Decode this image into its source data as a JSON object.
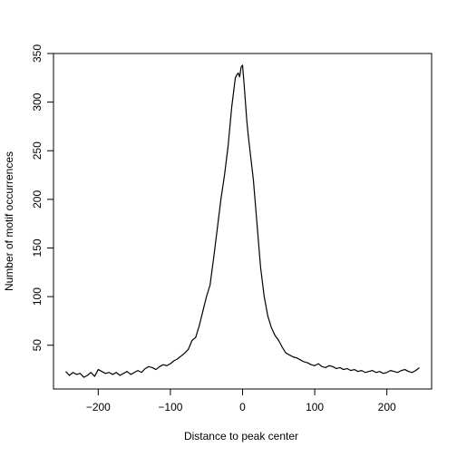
{
  "chart_data": {
    "type": "line",
    "title": "",
    "xlabel": "Distance to peak center",
    "ylabel": "Number of motif occurrences",
    "xlim": [
      -262,
      262
    ],
    "ylim": [
      5,
      350
    ],
    "xticks": [
      -200,
      -100,
      0,
      100,
      200
    ],
    "yticks": [
      50,
      100,
      150,
      200,
      250,
      300,
      350
    ],
    "grid": false,
    "legend": "none",
    "series": [
      {
        "color": "#000000",
        "x": [
          -245,
          -240,
          -235,
          -230,
          -225,
          -220,
          -215,
          -210,
          -205,
          -200,
          -195,
          -190,
          -185,
          -180,
          -175,
          -170,
          -165,
          -160,
          -155,
          -150,
          -145,
          -140,
          -135,
          -130,
          -125,
          -120,
          -115,
          -110,
          -105,
          -100,
          -95,
          -90,
          -85,
          -80,
          -75,
          -70,
          -65,
          -60,
          -55,
          -50,
          -45,
          -40,
          -35,
          -30,
          -25,
          -20,
          -15,
          -10,
          -8,
          -6,
          -4,
          -2,
          0,
          2,
          4,
          6,
          8,
          10,
          15,
          20,
          25,
          30,
          35,
          40,
          45,
          50,
          55,
          60,
          65,
          70,
          75,
          80,
          85,
          90,
          95,
          100,
          105,
          110,
          115,
          120,
          125,
          130,
          135,
          140,
          145,
          150,
          155,
          160,
          165,
          170,
          175,
          180,
          185,
          190,
          195,
          200,
          205,
          210,
          215,
          220,
          225,
          230,
          235,
          240,
          245
        ],
        "values": [
          23,
          19,
          22,
          20,
          21,
          17,
          19,
          22,
          18,
          25,
          23,
          21,
          22,
          20,
          22,
          19,
          21,
          23,
          20,
          22,
          24,
          22,
          26,
          28,
          27,
          25,
          28,
          30,
          29,
          31,
          34,
          36,
          39,
          42,
          46,
          55,
          58,
          70,
          85,
          100,
          112,
          140,
          170,
          200,
          225,
          255,
          295,
          325,
          328,
          330,
          326,
          336,
          338,
          320,
          300,
          280,
          265,
          252,
          220,
          175,
          130,
          100,
          80,
          68,
          60,
          55,
          48,
          42,
          40,
          38,
          37,
          35,
          33,
          32,
          30,
          29,
          31,
          28,
          27,
          29,
          28,
          26,
          27,
          25,
          26,
          24,
          25,
          23,
          24,
          22,
          23,
          24,
          22,
          23,
          21,
          22,
          24,
          23,
          22,
          24,
          25,
          23,
          22,
          24,
          27
        ]
      }
    ]
  }
}
